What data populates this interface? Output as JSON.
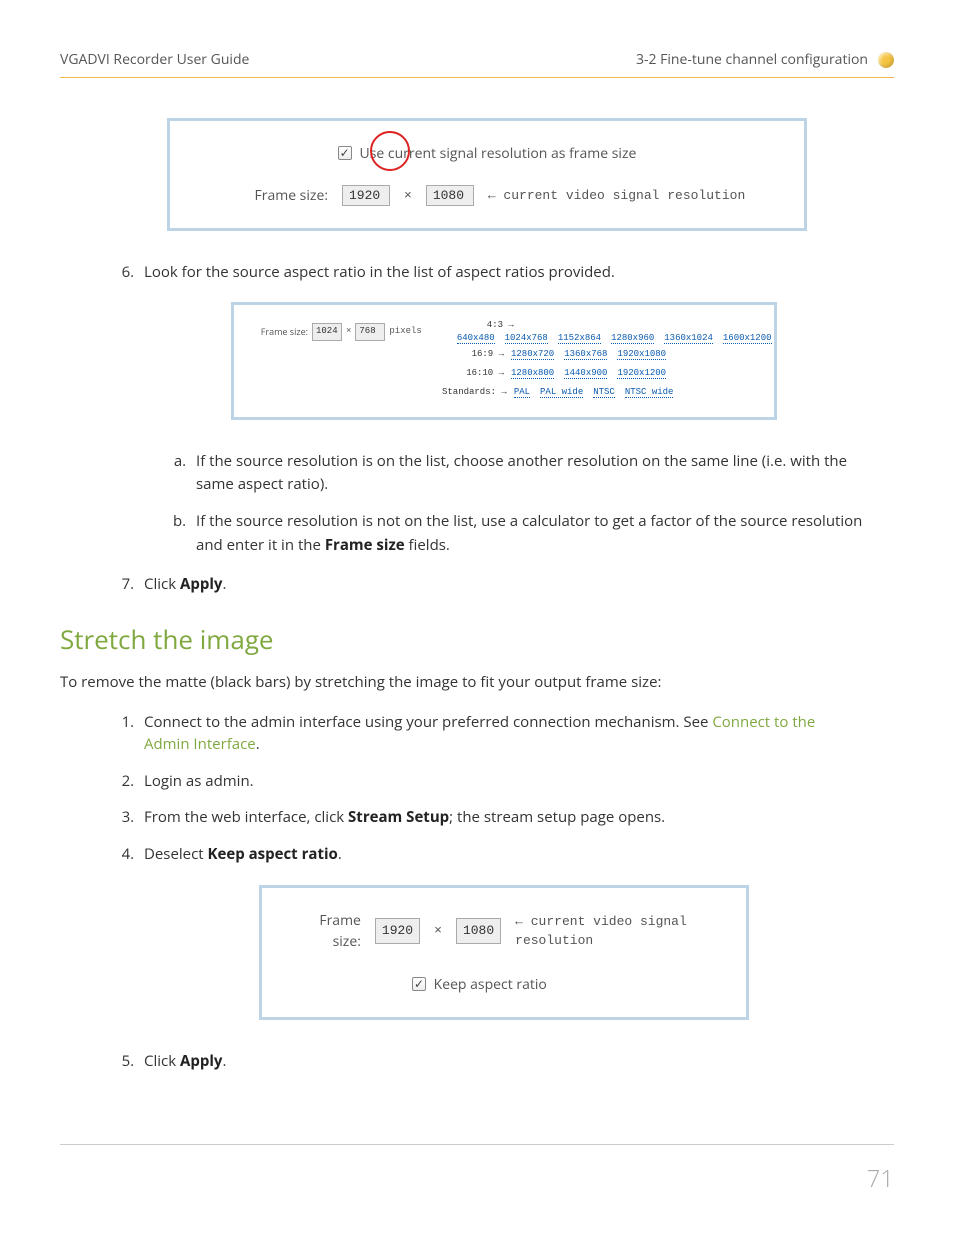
{
  "header": {
    "left": "VGADVI Recorder User Guide",
    "right": "3-2 Fine-tune channel configuration"
  },
  "fig1": {
    "checkbox_label": "Use current signal resolution as frame size",
    "frame_label": "Frame size:",
    "w": "1920",
    "h": "1080",
    "note": "← current video signal resolution"
  },
  "step6": "Look for the source aspect ratio in the list of aspect ratios provided.",
  "fig2": {
    "frame_label": "Frame size:",
    "w": "1024",
    "h": "768",
    "px": "pixels",
    "rows": [
      {
        "label": "4:3 →",
        "items": [
          "640x480",
          "1024x768",
          "1152x864",
          "1280x960",
          "1360x1024",
          "1600x1200"
        ]
      },
      {
        "label": "16:9 →",
        "items": [
          "1280x720",
          "1360x768",
          "1920x1080"
        ]
      },
      {
        "label": "16:10 →",
        "items": [
          "1280x800",
          "1440x900",
          "1920x1200"
        ]
      },
      {
        "label": "Standards: →",
        "items": [
          "PAL",
          "PAL wide",
          "NTSC",
          "NTSC wide"
        ]
      }
    ]
  },
  "sub_a": "If the source resolution is on the list, choose another resolution on the same line (i.e. with the same aspect ratio).",
  "sub_b_pre": "If the source resolution is not on the list, use a calculator to get a factor of the source resolution and enter it in the ",
  "sub_b_bold": "Frame size",
  "sub_b_post": " fields.",
  "step7_pre": "Click ",
  "step7_bold": "Apply",
  "step7_post": ".",
  "section_title": "Stretch the image",
  "lead": "To remove the matte (black bars) by stretching the image to fit your output frame size:",
  "s1_pre": "Connect to the admin interface using your preferred connection mechanism. See ",
  "s1_link": "Connect to the Admin Interface",
  "s1_post": ".",
  "s2": "Login as admin.",
  "s3_pre": "From the web interface, click ",
  "s3_bold": "Stream Setup",
  "s3_post": "; the stream setup page opens.",
  "s4_pre": "Deselect ",
  "s4_bold": "Keep aspect ratio",
  "s4_post": ".",
  "fig3": {
    "frame_label": "Frame size:",
    "w": "1920",
    "h": "1080",
    "note": "← current video signal resolution",
    "aspect_label": "Keep aspect ratio"
  },
  "s5_pre": "Click ",
  "s5_bold": "Apply",
  "s5_post": ".",
  "page_number": "71"
}
